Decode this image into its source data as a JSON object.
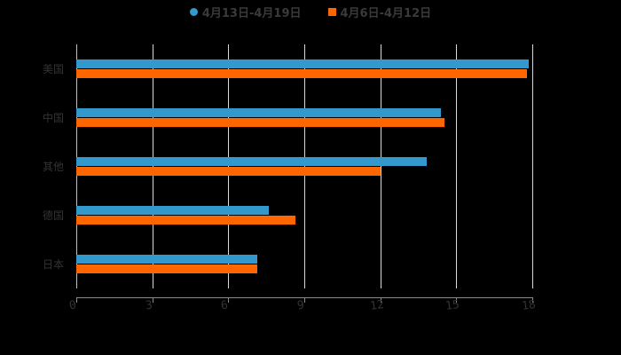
{
  "chart_data": {
    "type": "bar",
    "orientation": "horizontal",
    "title": "",
    "xlabel": "",
    "ylabel": "",
    "xlim": [
      0,
      18
    ],
    "xticks": [
      "0",
      "3",
      "6",
      "9",
      "12",
      "15",
      "18"
    ],
    "grid": true,
    "legend_position": "top",
    "categories": [
      "美国",
      "中国",
      "其他",
      "德国",
      "日本"
    ],
    "series": [
      {
        "name": "4月13日-4月19日",
        "color": "#3399cc",
        "marker": "circle",
        "values": [
          17.85,
          14.4,
          13.85,
          7.6,
          7.15
        ]
      },
      {
        "name": "4月6日-4月12日",
        "color": "#ff6600",
        "marker": "square",
        "values": [
          17.8,
          14.55,
          12.0,
          8.65,
          7.15
        ]
      }
    ]
  }
}
